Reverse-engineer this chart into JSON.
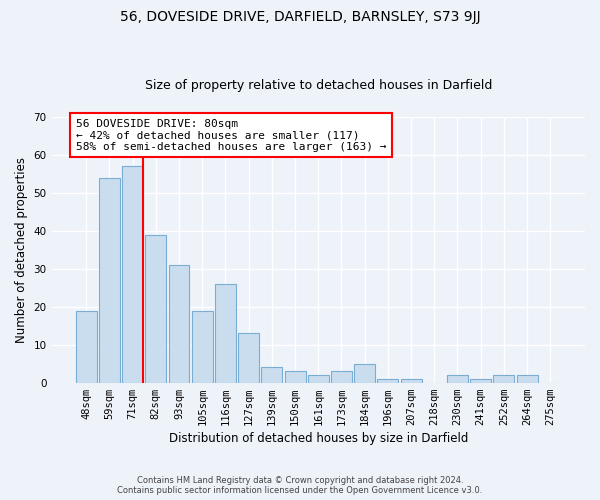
{
  "title": "56, DOVESIDE DRIVE, DARFIELD, BARNSLEY, S73 9JJ",
  "subtitle": "Size of property relative to detached houses in Darfield",
  "xlabel": "Distribution of detached houses by size in Darfield",
  "ylabel": "Number of detached properties",
  "categories": [
    "48sqm",
    "59sqm",
    "71sqm",
    "82sqm",
    "93sqm",
    "105sqm",
    "116sqm",
    "127sqm",
    "139sqm",
    "150sqm",
    "161sqm",
    "173sqm",
    "184sqm",
    "196sqm",
    "207sqm",
    "218sqm",
    "230sqm",
    "241sqm",
    "252sqm",
    "264sqm",
    "275sqm"
  ],
  "values": [
    19,
    54,
    57,
    39,
    31,
    19,
    26,
    13,
    4,
    3,
    2,
    3,
    5,
    1,
    1,
    0,
    2,
    1,
    2,
    2,
    0
  ],
  "bar_color": "#c9ddef",
  "bar_edge_color": "#7aadd4",
  "annotation_text": "56 DOVESIDE DRIVE: 80sqm\n← 42% of detached houses are smaller (117)\n58% of semi-detached houses are larger (163) →",
  "annotation_box_color": "white",
  "annotation_box_edge_color": "red",
  "red_line_x": 2.45,
  "ylim": [
    0,
    70
  ],
  "yticks": [
    0,
    10,
    20,
    30,
    40,
    50,
    60,
    70
  ],
  "bg_color": "#eef2f9",
  "grid_color": "white",
  "footer_line1": "Contains HM Land Registry data © Crown copyright and database right 2024.",
  "footer_line2": "Contains public sector information licensed under the Open Government Licence v3.0.",
  "title_fontsize": 10,
  "subtitle_fontsize": 9,
  "xlabel_fontsize": 8.5,
  "ylabel_fontsize": 8.5,
  "annotation_fontsize": 8,
  "tick_fontsize": 7.5
}
